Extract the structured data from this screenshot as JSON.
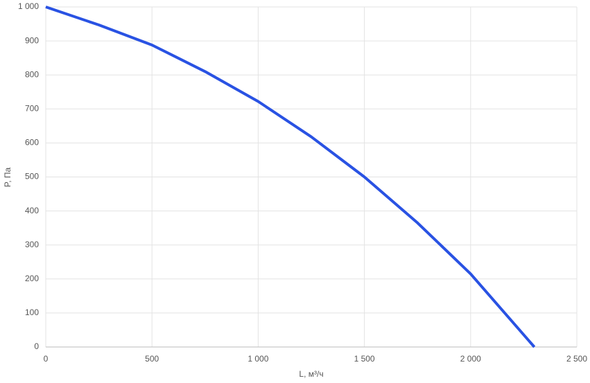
{
  "chart_data": {
    "type": "line",
    "x_label": "L, м³/ч",
    "y_label": "P, Па",
    "x": [
      0,
      250,
      500,
      750,
      1000,
      1250,
      1500,
      1750,
      2000,
      2300
    ],
    "series": [
      {
        "name": "P",
        "color": "#2952e3",
        "values": [
          1000,
          947,
          888,
          810,
          722,
          618,
          500,
          365,
          215,
          0
        ]
      }
    ],
    "xlim": [
      0,
      2500
    ],
    "ylim": [
      0,
      1000
    ],
    "xticks": [
      0,
      500,
      {
        "value": 1000,
        "label": "1 000"
      },
      {
        "value": 1500,
        "label": "1 500"
      },
      {
        "value": 2000,
        "label": "2 000"
      },
      {
        "value": 2500,
        "label": "2 500"
      }
    ],
    "yticks": [
      0,
      100,
      200,
      300,
      400,
      500,
      600,
      700,
      800,
      900,
      {
        "value": 1000,
        "label": "1 000"
      }
    ],
    "grid": true
  }
}
